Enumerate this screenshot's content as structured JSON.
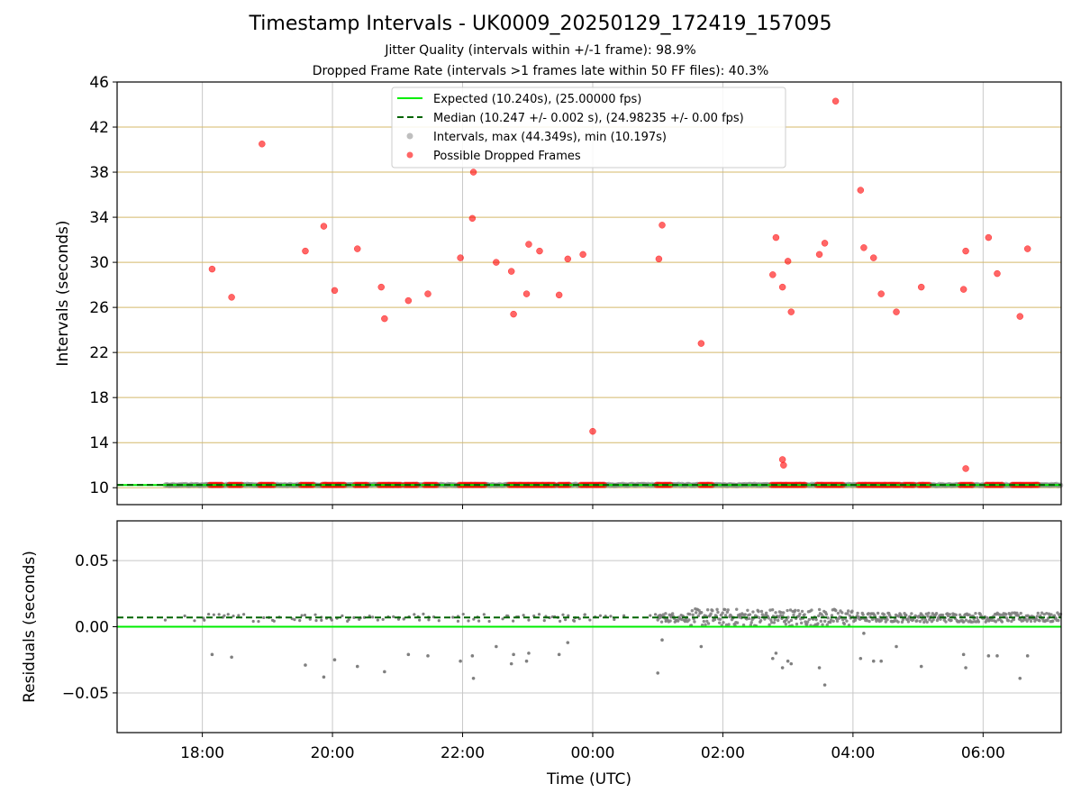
{
  "chart_data": [
    {
      "type": "scatter",
      "title": "Timestamp Intervals - UK0009_20250129_172419_157095",
      "subtitle_lines": [
        "Jitter Quality (intervals within +/-1 frame): 98.9%",
        "Dropped Frame Rate (intervals >1 frames late within 50 FF files): 40.3%"
      ],
      "xlabel": "",
      "ylabel": "Intervals (seconds)",
      "x_unit": "hours since 17:00 UTC (display only)",
      "xlim": [
        -0.31,
        14.2
      ],
      "ylim": [
        8.5,
        46
      ],
      "y_ticks": [
        10,
        14,
        18,
        22,
        26,
        30,
        34,
        38,
        42,
        46
      ],
      "y_gridlines": [
        10,
        14,
        18,
        22,
        26,
        30,
        34,
        38,
        42,
        46
      ],
      "x_tick_labels": [
        "18:00",
        "20:00",
        "22:00",
        "00:00",
        "02:00",
        "04:00",
        "06:00"
      ],
      "legend": {
        "placement": "upper center",
        "entries": [
          "Expected (10.240s), (25.00000 fps)",
          "Median (10.247 +/- 0.002 s), (24.98235 +/- 0.00 fps)",
          "Intervals, max (44.349s), min (10.197s)",
          "Possible Dropped Frames"
        ]
      },
      "expected": 10.24,
      "median": 10.247,
      "intervals_range": [
        0.43,
        14.2
      ],
      "dropped_points": [
        {
          "time": "18:09",
          "value": 29.4
        },
        {
          "time": "18:27",
          "value": 26.9
        },
        {
          "time": "18:55",
          "value": 40.5
        },
        {
          "time": "19:35",
          "value": 31.0
        },
        {
          "time": "19:52",
          "value": 33.2
        },
        {
          "time": "20:02",
          "value": 27.5
        },
        {
          "time": "20:23",
          "value": 31.2
        },
        {
          "time": "20:45",
          "value": 27.8
        },
        {
          "time": "20:48",
          "value": 25.0
        },
        {
          "time": "21:10",
          "value": 26.6
        },
        {
          "time": "21:28",
          "value": 27.2
        },
        {
          "time": "21:58",
          "value": 30.4
        },
        {
          "time": "22:09",
          "value": 33.9
        },
        {
          "time": "22:10",
          "value": 38.0
        },
        {
          "time": "22:31",
          "value": 30.0
        },
        {
          "time": "22:45",
          "value": 29.2
        },
        {
          "time": "22:47",
          "value": 25.4
        },
        {
          "time": "22:59",
          "value": 27.2
        },
        {
          "time": "23:01",
          "value": 31.6
        },
        {
          "time": "23:11",
          "value": 31.0
        },
        {
          "time": "23:29",
          "value": 27.1
        },
        {
          "time": "23:37",
          "value": 30.3
        },
        {
          "time": "23:51",
          "value": 30.7
        },
        {
          "time": "00:00",
          "value": 15.0
        },
        {
          "time": "01:01",
          "value": 30.3
        },
        {
          "time": "01:04",
          "value": 33.3
        },
        {
          "time": "01:40",
          "value": 22.8
        },
        {
          "time": "02:46",
          "value": 28.9
        },
        {
          "time": "02:49",
          "value": 32.2
        },
        {
          "time": "02:55",
          "value": 27.8
        },
        {
          "time": "02:55",
          "value": 12.5
        },
        {
          "time": "02:56",
          "value": 12.0
        },
        {
          "time": "03:00",
          "value": 30.1
        },
        {
          "time": "03:03",
          "value": 25.6
        },
        {
          "time": "03:29",
          "value": 30.7
        },
        {
          "time": "03:34",
          "value": 31.7
        },
        {
          "time": "03:44",
          "value": 44.3
        },
        {
          "time": "04:07",
          "value": 36.4
        },
        {
          "time": "04:10",
          "value": 31.3
        },
        {
          "time": "04:19",
          "value": 30.4
        },
        {
          "time": "04:26",
          "value": 27.2
        },
        {
          "time": "04:40",
          "value": 25.6
        },
        {
          "time": "05:03",
          "value": 27.8
        },
        {
          "time": "05:42",
          "value": 27.6
        },
        {
          "time": "05:44",
          "value": 31.0
        },
        {
          "time": "05:44",
          "value": 11.7
        },
        {
          "time": "06:05",
          "value": 32.2
        },
        {
          "time": "06:13",
          "value": 29.0
        },
        {
          "time": "06:34",
          "value": 25.2
        },
        {
          "time": "06:41",
          "value": 31.2
        }
      ],
      "dropped_baseline_clusters": [
        {
          "start": "18:07",
          "end": "18:19"
        },
        {
          "start": "18:25",
          "end": "18:37"
        },
        {
          "start": "18:53",
          "end": "19:07"
        },
        {
          "start": "19:31",
          "end": "19:43"
        },
        {
          "start": "19:51",
          "end": "20:11"
        },
        {
          "start": "20:21",
          "end": "20:33"
        },
        {
          "start": "20:43",
          "end": "21:03"
        },
        {
          "start": "21:07",
          "end": "21:19"
        },
        {
          "start": "21:25",
          "end": "21:37"
        },
        {
          "start": "21:57",
          "end": "22:21"
        },
        {
          "start": "22:43",
          "end": "23:25"
        },
        {
          "start": "23:29",
          "end": "23:39"
        },
        {
          "start": "23:49",
          "end": "00:11"
        },
        {
          "start": "00:59",
          "end": "01:13"
        },
        {
          "start": "01:39",
          "end": "01:51"
        },
        {
          "start": "02:45",
          "end": "03:17"
        },
        {
          "start": "03:27",
          "end": "03:51"
        },
        {
          "start": "04:05",
          "end": "04:43"
        },
        {
          "start": "04:47",
          "end": "04:57"
        },
        {
          "start": "05:01",
          "end": "05:11"
        },
        {
          "start": "05:39",
          "end": "05:51"
        },
        {
          "start": "06:03",
          "end": "06:19"
        },
        {
          "start": "06:27",
          "end": "06:51"
        }
      ]
    },
    {
      "type": "scatter",
      "xlabel": "Time (UTC)",
      "ylabel": "Residuals (seconds)",
      "ylim": [
        -0.08,
        0.08
      ],
      "y_ticks": [
        0.05,
        0.0,
        -0.05
      ],
      "y_tick_labels": [
        "0.05",
        "0.00",
        "−0.05"
      ],
      "x_tick_labels": [
        "18:00",
        "20:00",
        "22:00",
        "00:00",
        "02:00",
        "04:00",
        "06:00"
      ],
      "expected_residual": 0.0,
      "median_residual": 0.007,
      "residual_outliers": [
        {
          "time": "18:09",
          "value": -0.021
        },
        {
          "time": "18:27",
          "value": -0.023
        },
        {
          "time": "19:35",
          "value": -0.029
        },
        {
          "time": "19:52",
          "value": -0.038
        },
        {
          "time": "20:02",
          "value": -0.025
        },
        {
          "time": "20:23",
          "value": -0.03
        },
        {
          "time": "20:48",
          "value": -0.034
        },
        {
          "time": "21:10",
          "value": -0.021
        },
        {
          "time": "21:28",
          "value": -0.022
        },
        {
          "time": "21:58",
          "value": -0.026
        },
        {
          "time": "22:09",
          "value": -0.022
        },
        {
          "time": "22:10",
          "value": -0.039
        },
        {
          "time": "22:31",
          "value": -0.015
        },
        {
          "time": "22:45",
          "value": -0.028
        },
        {
          "time": "22:47",
          "value": -0.021
        },
        {
          "time": "22:59",
          "value": -0.026
        },
        {
          "time": "23:01",
          "value": -0.02
        },
        {
          "time": "23:29",
          "value": -0.021
        },
        {
          "time": "23:37",
          "value": -0.012
        },
        {
          "time": "01:00",
          "value": -0.035
        },
        {
          "time": "01:04",
          "value": -0.01
        },
        {
          "time": "01:40",
          "value": -0.015
        },
        {
          "time": "02:46",
          "value": -0.024
        },
        {
          "time": "02:49",
          "value": -0.02
        },
        {
          "time": "02:55",
          "value": -0.031
        },
        {
          "time": "03:00",
          "value": -0.026
        },
        {
          "time": "03:03",
          "value": -0.028
        },
        {
          "time": "03:29",
          "value": -0.031
        },
        {
          "time": "03:34",
          "value": -0.044
        },
        {
          "time": "04:07",
          "value": -0.024
        },
        {
          "time": "04:10",
          "value": -0.005
        },
        {
          "time": "04:19",
          "value": -0.026
        },
        {
          "time": "04:26",
          "value": -0.026
        },
        {
          "time": "04:40",
          "value": -0.015
        },
        {
          "time": "05:03",
          "value": -0.03
        },
        {
          "time": "05:42",
          "value": -0.021
        },
        {
          "time": "05:44",
          "value": -0.031
        },
        {
          "time": "06:05",
          "value": -0.022
        },
        {
          "time": "06:13",
          "value": -0.022
        },
        {
          "time": "06:34",
          "value": -0.039
        },
        {
          "time": "06:41",
          "value": -0.022
        }
      ]
    }
  ],
  "colors": {
    "expected": "#00ee00",
    "median": "#006400",
    "intervals": "#808080",
    "dropped": "#ff0000",
    "y_grid": "#d4b96a",
    "grid": "#c8c8c8"
  }
}
